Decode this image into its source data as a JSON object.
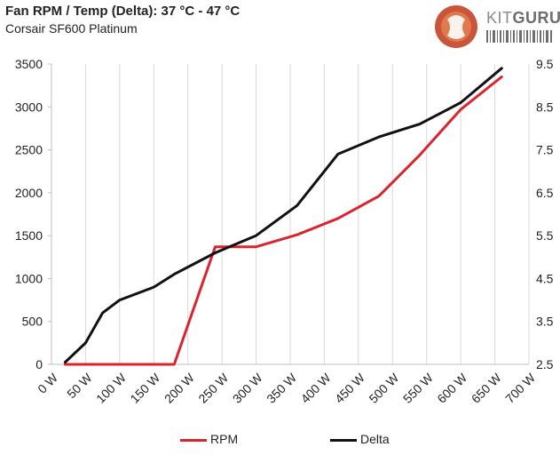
{
  "header": {
    "title": "Fan RPM / Temp (Delta): 37 °C - 47 °C",
    "subtitle": "Corsair SF600 Platinum"
  },
  "logo": {
    "text_a": "KIT",
    "text_b": "GURU",
    "icon": "kitguru-logo"
  },
  "chart_data": {
    "type": "line",
    "title": "Fan RPM / Temp (Delta): 37 °C - 47 °C",
    "subtitle": "Corsair SF600 Platinum",
    "xlabel": "",
    "ylabel": "",
    "x_ticks": [
      "0 W",
      "50 W",
      "100 W",
      "150 W",
      "200 W",
      "250 W",
      "300 W",
      "350 W",
      "400 W",
      "450 W",
      "500 W",
      "550 W",
      "600 W",
      "650 W",
      "700 W"
    ],
    "xlim": [
      0,
      700
    ],
    "y_left": {
      "lim": [
        0,
        3500
      ],
      "ticks": [
        "0",
        "500",
        "1000",
        "1500",
        "2000",
        "2500",
        "3000",
        "3500"
      ]
    },
    "y_right": {
      "lim": [
        2.5,
        9.5
      ],
      "ticks": [
        "2.5",
        "3.5",
        "4.5",
        "5.5",
        "6.5",
        "7.5",
        "8.5",
        "9.5"
      ]
    },
    "grid": "vertical",
    "legend": "bottom",
    "series": [
      {
        "name": "RPM",
        "axis": "left",
        "color": "#d9262e",
        "points": [
          [
            20,
            0
          ],
          [
            50,
            0
          ],
          [
            75,
            0
          ],
          [
            100,
            0
          ],
          [
            150,
            0
          ],
          [
            180,
            0
          ],
          [
            240,
            1370
          ],
          [
            300,
            1370
          ],
          [
            360,
            1510
          ],
          [
            420,
            1700
          ],
          [
            480,
            1960
          ],
          [
            540,
            2440
          ],
          [
            600,
            2970
          ],
          [
            660,
            3350
          ]
        ]
      },
      {
        "name": "Delta",
        "axis": "right",
        "color": "#111111",
        "points": [
          [
            20,
            2.55
          ],
          [
            50,
            3.0
          ],
          [
            75,
            3.7
          ],
          [
            100,
            4.0
          ],
          [
            150,
            4.3
          ],
          [
            180,
            4.6
          ],
          [
            240,
            5.1
          ],
          [
            300,
            5.5
          ],
          [
            360,
            6.2
          ],
          [
            420,
            7.4
          ],
          [
            480,
            7.8
          ],
          [
            540,
            8.1
          ],
          [
            600,
            8.6
          ],
          [
            660,
            9.4
          ]
        ]
      }
    ]
  }
}
